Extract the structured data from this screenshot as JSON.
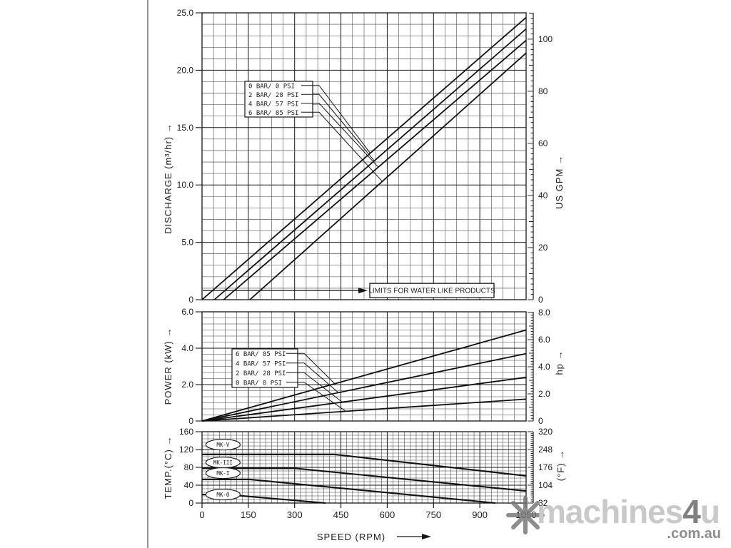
{
  "figure": {
    "x_axis": {
      "label": "SPEED (RPM)",
      "range": [
        0,
        1050
      ],
      "tick_labels": [
        "0",
        "150",
        "300",
        "450",
        "600",
        "750",
        "900",
        "1050"
      ],
      "tick_values": [
        0,
        150,
        300,
        450,
        600,
        750,
        900,
        1050
      ]
    },
    "chart_data": [
      {
        "id": "discharge",
        "type": "line",
        "y_left": {
          "label": "DISCHARGE (m³/hr)",
          "range": [
            0,
            25
          ],
          "tick_labels": [
            "0",
            "5.0",
            "10.0",
            "15.0",
            "20.0",
            "25.0"
          ],
          "tick_values": [
            0,
            5,
            10,
            15,
            20,
            25
          ],
          "minor_step": 1
        },
        "y_right": {
          "label": "US GPM",
          "range": [
            0,
            110.1
          ],
          "tick_labels": [
            "0",
            "20",
            "40",
            "60",
            "80",
            "100"
          ],
          "tick_values": [
            0,
            20,
            40,
            60,
            80,
            100
          ],
          "minor_step": 2,
          "mid_mod": 10,
          "label_mod": 20
        },
        "x_minor_step": 37.5,
        "series": [
          {
            "name": "0 BAR/  0 PSI",
            "points": [
              [
                0,
                0
              ],
              [
                1050,
                24.6
              ]
            ]
          },
          {
            "name": "2 BAR/ 28 PSI",
            "points": [
              [
                40,
                0
              ],
              [
                1050,
                23.6
              ]
            ]
          },
          {
            "name": "4 BAR/ 57 PSI",
            "points": [
              [
                70,
                0
              ],
              [
                1050,
                22.6
              ]
            ]
          },
          {
            "name": "6 BAR/ 85 PSI",
            "points": [
              [
                155,
                0
              ],
              [
                1050,
                21.5
              ]
            ]
          }
        ],
        "legend": {
          "rows": [
            {
              "label": "0 BAR/  0 PSI",
              "series": 0,
              "target_rpm": 545
            },
            {
              "label": "2 BAR/ 28 PSI",
              "series": 1,
              "target_rpm": 558
            },
            {
              "label": "4 BAR/ 57 PSI",
              "series": 2,
              "target_rpm": 571
            },
            {
              "label": "6 BAR/ 85 PSI",
              "series": 3,
              "target_rpm": 584
            }
          ]
        },
        "annotation": {
          "text": "LIMITS FOR WATER LIKE PRODUCTS",
          "value": 0.8
        }
      },
      {
        "id": "power",
        "type": "line",
        "y_left": {
          "label": "POWER (kW)",
          "range": [
            0,
            6
          ],
          "tick_labels": [
            "0",
            "2.0",
            "4.0",
            "6.0"
          ],
          "tick_values": [
            0,
            2,
            4,
            6
          ],
          "minor_step": 0.33333
        },
        "y_right": {
          "label": "hp",
          "range": [
            0,
            8.05
          ],
          "tick_labels": [
            "0",
            "2.0",
            "4.0",
            "6.0",
            "8.0"
          ],
          "tick_values": [
            0,
            2,
            4,
            6,
            8
          ],
          "minor_step": 0.2,
          "mid_mod": 1,
          "label_mod": 2
        },
        "x_minor_step": 37.5,
        "series": [
          {
            "name": "6 BAR/ 85 PSI",
            "points": [
              [
                0,
                0
              ],
              [
                1050,
                5.0
              ]
            ]
          },
          {
            "name": "4 BAR/ 57 PSI",
            "points": [
              [
                0,
                0
              ],
              [
                1050,
                3.7
              ]
            ]
          },
          {
            "name": "2 BAR/ 28 PSI",
            "points": [
              [
                0,
                0
              ],
              [
                1050,
                2.4
              ]
            ]
          },
          {
            "name": "0 BAR/  0 PSI",
            "points": [
              [
                0,
                0
              ],
              [
                1050,
                1.2
              ]
            ]
          }
        ],
        "legend": {
          "rows": [
            {
              "label": "6 BAR/ 85 PSI",
              "series": 0,
              "target_rpm": 430
            },
            {
              "label": "4 BAR/ 57 PSI",
              "series": 1,
              "target_rpm": 442
            },
            {
              "label": "2 BAR/ 28 PSI",
              "series": 2,
              "target_rpm": 454
            },
            {
              "label": "0 BAR/  0 PSI",
              "series": 3,
              "target_rpm": 466
            }
          ]
        }
      },
      {
        "id": "temperature",
        "type": "line",
        "y_left": {
          "label": "TEMP.(°C)",
          "range": [
            0,
            160
          ],
          "tick_labels": [
            "0",
            "40",
            "80",
            "120",
            "160"
          ],
          "tick_values": [
            0,
            40,
            80,
            120,
            160
          ],
          "minor_step": 8
        },
        "y_right": {
          "label": "(°F)",
          "range": [
            32,
            320
          ],
          "tick_labels": [
            "32",
            "104",
            "176",
            "248",
            "320"
          ],
          "tick_values": [
            32,
            104,
            176,
            248,
            320
          ],
          "minor_step": 8,
          "mid_mod": 36,
          "label_mod": 72
        },
        "x_minor_step": 18.75,
        "series": [
          {
            "name": "MK-V",
            "points": [
              [
                0,
                109
              ],
              [
                430,
                109
              ],
              [
                1050,
                61
              ]
            ]
          },
          {
            "name": "MK-III",
            "points": [
              [
                0,
                78
              ],
              [
                300,
                78
              ],
              [
                1050,
                27
              ]
            ]
          },
          {
            "name": "MK-I",
            "points": [
              [
                0,
                53
              ],
              [
                155,
                53
              ],
              [
                950,
                0
              ]
            ]
          },
          {
            "name": "MK-0",
            "points": [
              [
                0,
                19
              ],
              [
                80,
                19
              ],
              [
                400,
                0
              ]
            ]
          }
        ],
        "oval_labels": [
          {
            "text": "MK-V",
            "rpm": 68,
            "value": 131
          },
          {
            "text": "MK-III",
            "rpm": 68,
            "value": 91
          },
          {
            "text": "MK-I",
            "rpm": 68,
            "value": 67
          },
          {
            "text": "MK-0",
            "rpm": 68,
            "value": 19
          }
        ]
      }
    ]
  },
  "watermark": {
    "brand_prefix": "machines",
    "brand_number": "4",
    "brand_suffix": "u",
    "domain": ".com.au"
  },
  "colors": {
    "line": "#101010",
    "grid_minor": "#3f3f3f",
    "grid_major": "#161616",
    "text": "#1d1d1d",
    "watermark_light": "#c9c9c9",
    "watermark_mid": "#808080",
    "watermark_domain": "#8d8d8d",
    "watermark_star": "#757575"
  }
}
